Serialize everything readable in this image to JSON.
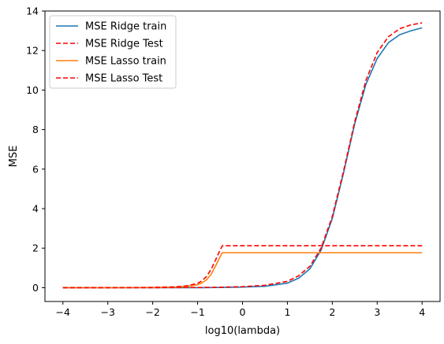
{
  "chart_data": {
    "type": "line",
    "title": "",
    "xlabel": "log10(lambda)",
    "ylabel": "MSE",
    "xlim": [
      -4.4,
      4.4
    ],
    "ylim": [
      -0.7,
      14
    ],
    "xticks": [
      -4,
      -3,
      -2,
      -1,
      0,
      1,
      2,
      3,
      4
    ],
    "yticks": [
      0,
      2,
      4,
      6,
      8,
      10,
      12,
      14
    ],
    "grid": false,
    "legend_position": "top-left",
    "series": [
      {
        "name": "MSE Ridge train",
        "color": "#1f77b4",
        "style": "solid",
        "x": [
          -4,
          -3,
          -2,
          -1,
          -0.5,
          0,
          0.5,
          1,
          1.25,
          1.5,
          1.75,
          2,
          2.25,
          2.5,
          2.75,
          3,
          3.25,
          3.5,
          3.75,
          4
        ],
        "y": [
          0.0,
          0.0,
          0.0,
          0.0,
          0.01,
          0.03,
          0.07,
          0.23,
          0.48,
          0.95,
          1.9,
          3.5,
          5.8,
          8.3,
          10.3,
          11.6,
          12.4,
          12.8,
          13.0,
          13.15
        ]
      },
      {
        "name": "MSE Ridge Test",
        "color": "#ff0000",
        "style": "dashed",
        "x": [
          -4,
          -3,
          -2,
          -1,
          -0.5,
          0,
          0.5,
          1,
          1.25,
          1.5,
          1.75,
          2,
          2.25,
          2.5,
          2.75,
          3,
          3.25,
          3.5,
          3.75,
          4
        ],
        "y": [
          0.0,
          0.0,
          0.0,
          0.01,
          0.02,
          0.05,
          0.12,
          0.32,
          0.6,
          1.08,
          2.0,
          3.6,
          5.9,
          8.4,
          10.5,
          11.9,
          12.7,
          13.1,
          13.3,
          13.4
        ]
      },
      {
        "name": "MSE Lasso train",
        "color": "#ff7f0e",
        "style": "solid",
        "x": [
          -4,
          -3,
          -2,
          -1.5,
          -1.25,
          -1,
          -0.9,
          -0.8,
          -0.7,
          -0.6,
          -0.5,
          -0.45,
          0,
          1,
          2,
          3,
          4
        ],
        "y": [
          0.0,
          0.0,
          0.01,
          0.03,
          0.06,
          0.15,
          0.24,
          0.4,
          0.67,
          1.1,
          1.55,
          1.77,
          1.77,
          1.77,
          1.77,
          1.77,
          1.77
        ]
      },
      {
        "name": "MSE Lasso Test",
        "color": "#ff0000",
        "style": "dashed",
        "x": [
          -4,
          -3,
          -2,
          -1.5,
          -1.25,
          -1,
          -0.9,
          -0.8,
          -0.7,
          -0.6,
          -0.5,
          -0.45,
          0,
          1,
          2,
          3,
          4
        ],
        "y": [
          0.0,
          0.0,
          0.01,
          0.04,
          0.09,
          0.22,
          0.35,
          0.57,
          0.92,
          1.4,
          1.9,
          2.12,
          2.12,
          2.12,
          2.12,
          2.12,
          2.12
        ]
      }
    ]
  }
}
